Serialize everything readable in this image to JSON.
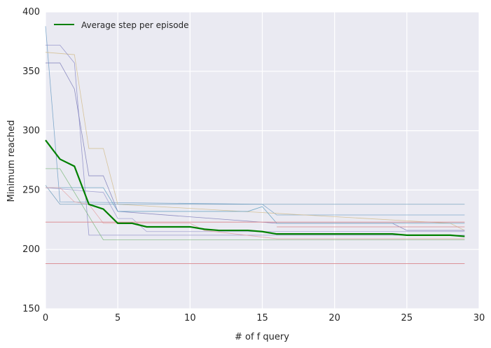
{
  "chart_data": {
    "type": "line",
    "xlabel": "# of f query",
    "ylabel": "Minimum reached",
    "xlim": [
      0,
      30
    ],
    "ylim": [
      150,
      400
    ],
    "xticks": [
      "0",
      "5",
      "10",
      "15",
      "20",
      "25",
      "30"
    ],
    "yticks": [
      "150",
      "200",
      "250",
      "300",
      "350",
      "400"
    ],
    "grid": true,
    "legend_position": "top-left",
    "background_color": "#eaeaf2",
    "grid_color": "#ffffff",
    "average": {
      "name": "Average step per episode",
      "color": "#008000",
      "x": [
        0,
        1,
        2,
        3,
        4,
        5,
        6,
        7,
        8,
        9,
        10,
        11,
        12,
        13,
        14,
        15,
        16,
        17,
        18,
        19,
        20,
        21,
        22,
        23,
        24,
        25,
        26,
        27,
        28,
        29
      ],
      "y": [
        292,
        276,
        270,
        238,
        234,
        222,
        222,
        219,
        219,
        219,
        219,
        217,
        216,
        216,
        216,
        215,
        213,
        213,
        213,
        213,
        213,
        213,
        213,
        213,
        213,
        212,
        212,
        212,
        212,
        211
      ]
    },
    "runs": [
      {
        "color": "#6d9ec6",
        "x": [
          0,
          1,
          15,
          16,
          29
        ],
        "y": [
          388,
          240,
          238,
          229,
          229
        ]
      },
      {
        "color": "#d2bc8c",
        "x": [
          0,
          2,
          3,
          4,
          5,
          28,
          29
        ],
        "y": [
          366,
          364,
          285,
          285,
          238,
          222,
          216
        ]
      },
      {
        "color": "#8c8cc8",
        "x": [
          0,
          1,
          2,
          3,
          3.01,
          29
        ],
        "y": [
          372,
          372,
          357,
          212,
          212,
          212
        ]
      },
      {
        "color": "#7b7bb8",
        "x": [
          0,
          1,
          2,
          3,
          3.5,
          4,
          5,
          16,
          24,
          25,
          29
        ],
        "y": [
          357,
          357,
          335,
          262,
          262,
          262,
          232,
          222,
          222,
          216,
          216
        ]
      },
      {
        "color": "#7cb87c",
        "x": [
          0,
          1,
          4,
          5,
          10,
          11,
          29
        ],
        "y": [
          268,
          268,
          208,
          208,
          208,
          208,
          208
        ]
      },
      {
        "color": "#6a9ab8",
        "x": [
          0,
          1,
          3,
          29
        ],
        "y": [
          254,
          238,
          238,
          238
        ]
      },
      {
        "color": "#5f9fbf",
        "x": [
          0,
          1,
          2,
          3,
          4,
          5,
          11,
          14,
          15,
          16,
          29
        ],
        "y": [
          252,
          252,
          252,
          252,
          252,
          232,
          232,
          232,
          236,
          222,
          222
        ]
      },
      {
        "color": "#9b9bcf",
        "x": [
          0,
          4,
          5,
          6,
          7,
          10,
          29
        ],
        "y": [
          252,
          248,
          226,
          226,
          215,
          215,
          215
        ]
      },
      {
        "color": "#e3a3a3",
        "x": [
          0,
          1,
          2,
          3,
          4,
          5,
          10,
          11,
          16,
          29
        ],
        "y": [
          252,
          252,
          240,
          238,
          222,
          222,
          222,
          216,
          209,
          209
        ]
      }
    ],
    "reference_lines": [
      {
        "y": 223,
        "color": "#d9848a"
      },
      {
        "y": 219,
        "color": "#d9848a",
        "x_from": 16
      },
      {
        "y": 188,
        "color": "#d9848a"
      }
    ]
  }
}
